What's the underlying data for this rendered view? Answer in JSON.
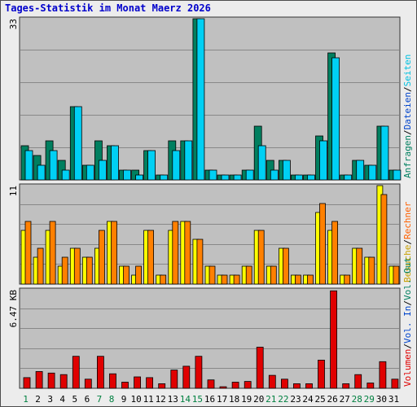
{
  "title": "Tages-Statistik im Monat Maerz 2026",
  "colors": {
    "background": "#c0c0c0",
    "grid": "#888888",
    "anfragen": "#007f5f",
    "dateien": "#00d0f4",
    "seiten": "#00e4f4",
    "besuche": "#ffff00",
    "rechner": "#ff8000",
    "volumen": "#e00000",
    "weekday_label": "#000000",
    "weekend_label": "#008040"
  },
  "chart_data": [
    {
      "type": "bar",
      "panel": "hits",
      "ymax": 33,
      "ymax_label": "33",
      "legend": [
        {
          "text": "Anfragen",
          "color": "#007f5f"
        },
        {
          "text": "/",
          "color": "#000000"
        },
        {
          "text": "Dateien",
          "color": "#0044cc"
        },
        {
          "text": "/",
          "color": "#000000"
        },
        {
          "text": "Seiten",
          "color": "#00c0e0"
        }
      ],
      "categories": [
        "1",
        "2",
        "3",
        "4",
        "5",
        "6",
        "7",
        "8",
        "9",
        "10",
        "11",
        "12",
        "13",
        "14",
        "15",
        "16",
        "17",
        "18",
        "19",
        "20",
        "21",
        "22",
        "23",
        "24",
        "25",
        "26",
        "27",
        "28",
        "29",
        "30",
        "31"
      ],
      "series": [
        {
          "name": "Anfragen",
          "values": [
            7,
            5,
            8,
            4,
            15,
            3,
            8,
            7,
            2,
            2,
            6,
            1,
            8,
            8,
            33,
            2,
            1,
            1,
            2,
            11,
            4,
            4,
            1,
            1,
            9,
            26,
            1,
            4,
            3,
            11,
            2
          ]
        },
        {
          "name": "Dateien",
          "values": [
            6,
            3,
            6,
            2,
            15,
            3,
            4,
            7,
            2,
            1,
            6,
            1,
            6,
            8,
            33,
            2,
            1,
            1,
            2,
            7,
            2,
            4,
            1,
            1,
            8,
            25,
            1,
            4,
            3,
            11,
            2
          ]
        }
      ]
    },
    {
      "type": "bar",
      "panel": "visits",
      "ymax": 11,
      "ymax_label": "11",
      "legend": [
        {
          "text": "Besuche",
          "color": "#c8a000"
        },
        {
          "text": "/",
          "color": "#000000"
        },
        {
          "text": "Rechner",
          "color": "#ff6000"
        }
      ],
      "categories": [
        "1",
        "2",
        "3",
        "4",
        "5",
        "6",
        "7",
        "8",
        "9",
        "10",
        "11",
        "12",
        "13",
        "14",
        "15",
        "16",
        "17",
        "18",
        "19",
        "20",
        "21",
        "22",
        "23",
        "24",
        "25",
        "26",
        "27",
        "28",
        "29",
        "30",
        "31"
      ],
      "series": [
        {
          "name": "Besuche",
          "values": [
            6,
            3,
            6,
            2,
            4,
            3,
            4,
            7,
            2,
            1,
            6,
            1,
            6,
            7,
            5,
            2,
            1,
            1,
            2,
            6,
            2,
            4,
            1,
            1,
            8,
            6,
            1,
            4,
            3,
            11,
            2
          ]
        },
        {
          "name": "Rechner",
          "values": [
            7,
            4,
            7,
            3,
            4,
            3,
            6,
            7,
            2,
            2,
            6,
            1,
            7,
            7,
            5,
            2,
            1,
            1,
            2,
            6,
            2,
            4,
            1,
            1,
            9,
            7,
            1,
            4,
            3,
            10,
            2
          ]
        }
      ]
    },
    {
      "type": "bar",
      "panel": "volume",
      "ymax": 6.47,
      "ymax_label": "6.47 KB",
      "legend": [
        {
          "text": "Volumen",
          "color": "#e00000"
        },
        {
          "text": "/",
          "color": "#000000"
        },
        {
          "text": "Vol. In",
          "color": "#0044cc"
        },
        {
          "text": "/",
          "color": "#000000"
        },
        {
          "text": "Vol. Out",
          "color": "#007f5f"
        }
      ],
      "categories": [
        "1",
        "2",
        "3",
        "4",
        "5",
        "6",
        "7",
        "8",
        "9",
        "10",
        "11",
        "12",
        "13",
        "14",
        "15",
        "16",
        "17",
        "18",
        "19",
        "20",
        "21",
        "22",
        "23",
        "24",
        "25",
        "26",
        "27",
        "28",
        "29",
        "30",
        "31"
      ],
      "series": [
        {
          "name": "Volumen",
          "values": [
            0.7,
            1.1,
            1.0,
            0.9,
            2.1,
            0.6,
            2.1,
            0.95,
            0.4,
            0.75,
            0.7,
            0.3,
            1.2,
            1.45,
            2.1,
            0.55,
            0.1,
            0.4,
            0.45,
            2.7,
            0.85,
            0.6,
            0.3,
            0.3,
            1.85,
            6.4,
            0.3,
            0.9,
            0.35,
            1.75,
            0.6
          ]
        }
      ]
    }
  ],
  "x_labels": [
    {
      "text": "1",
      "weekend": true
    },
    {
      "text": "2",
      "weekend": false
    },
    {
      "text": "3",
      "weekend": false
    },
    {
      "text": "4",
      "weekend": false
    },
    {
      "text": "5",
      "weekend": false
    },
    {
      "text": "6",
      "weekend": false
    },
    {
      "text": "7",
      "weekend": true
    },
    {
      "text": "8",
      "weekend": true
    },
    {
      "text": "9",
      "weekend": false
    },
    {
      "text": "10",
      "weekend": false
    },
    {
      "text": "11",
      "weekend": false
    },
    {
      "text": "12",
      "weekend": false
    },
    {
      "text": "13",
      "weekend": false
    },
    {
      "text": "14",
      "weekend": true
    },
    {
      "text": "15",
      "weekend": true
    },
    {
      "text": "16",
      "weekend": false
    },
    {
      "text": "17",
      "weekend": false
    },
    {
      "text": "18",
      "weekend": false
    },
    {
      "text": "19",
      "weekend": false
    },
    {
      "text": "20",
      "weekend": false
    },
    {
      "text": "21",
      "weekend": true
    },
    {
      "text": "22",
      "weekend": true
    },
    {
      "text": "23",
      "weekend": false
    },
    {
      "text": "24",
      "weekend": false
    },
    {
      "text": "25",
      "weekend": false
    },
    {
      "text": "26",
      "weekend": false
    },
    {
      "text": "27",
      "weekend": false
    },
    {
      "text": "28",
      "weekend": true
    },
    {
      "text": "29",
      "weekend": true
    },
    {
      "text": "30",
      "weekend": false
    },
    {
      "text": "31",
      "weekend": false
    }
  ]
}
